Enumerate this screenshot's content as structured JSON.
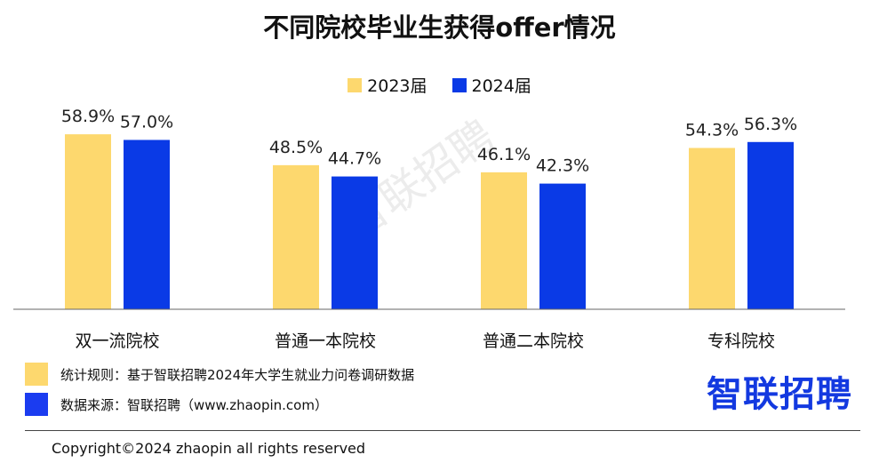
{
  "chart_data": {
    "type": "bar",
    "title": "不同院校毕业生获得offer情况",
    "categories": [
      "双一流院校",
      "普通一本院校",
      "普通二本院校",
      "专科院校"
    ],
    "series": [
      {
        "name": "2023届",
        "values": [
          58.9,
          48.5,
          46.1,
          54.3
        ],
        "labels": [
          "58.9%",
          "48.5%",
          "46.1%",
          "54.3%"
        ],
        "color": "#FDD86E"
      },
      {
        "name": "2024届",
        "values": [
          57.0,
          44.7,
          42.3,
          56.3
        ],
        "labels": [
          "57.0%",
          "44.7%",
          "42.3%",
          "56.3%"
        ],
        "color": "#0A3AE6"
      }
    ],
    "ylim": [
      0,
      70
    ],
    "grid": false,
    "legend_position": "top-center",
    "value_unit": "%"
  },
  "notes": [
    {
      "text": "统计规则：基于智联招聘2024年大学生就业力问卷调研数据",
      "color": "#FDD86E"
    },
    {
      "text": "数据来源：智联招聘（www.zhaopin.com）",
      "color": "#1B3CF0"
    }
  ],
  "logo": "智联招聘",
  "watermark": "智联招聘",
  "copyright": "Copyright©2024 zhaopin all rights reserved"
}
